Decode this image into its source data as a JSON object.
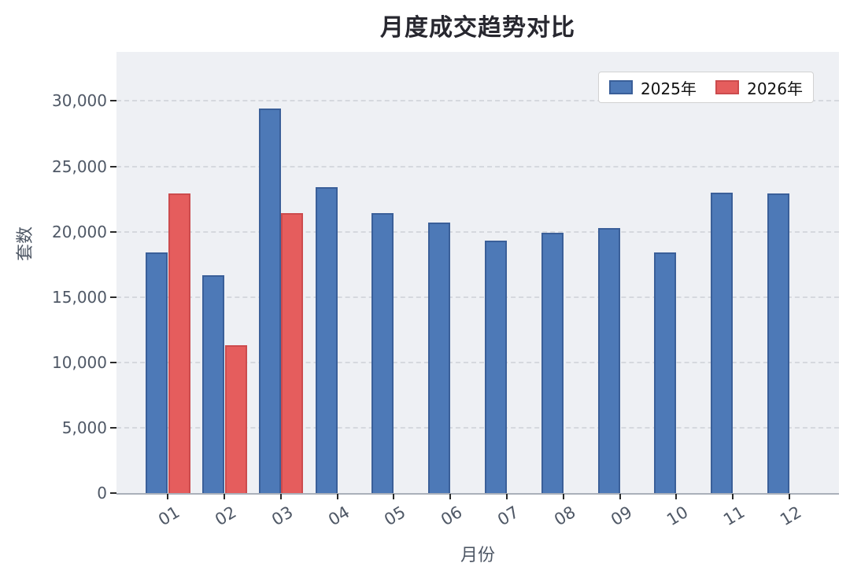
{
  "title": "月度成交趋势对比",
  "axes": {
    "x_title": "月份",
    "y_title": "套数"
  },
  "legend": {
    "items": [
      {
        "label": "2025年",
        "color": "#4d79b7",
        "border": "#3a5f99"
      },
      {
        "label": "2026年",
        "color": "#e55d5d",
        "border": "#cc4b4d"
      }
    ]
  },
  "chart_data": {
    "type": "bar",
    "title": "月度成交趋势对比",
    "xlabel": "月份",
    "ylabel": "套数",
    "categories": [
      "01",
      "02",
      "03",
      "04",
      "05",
      "06",
      "07",
      "08",
      "09",
      "10",
      "11",
      "12"
    ],
    "series": [
      {
        "name": "2025年",
        "color": "#4d79b7",
        "border_color": "#3a5f99",
        "values": [
          18400,
          16700,
          29400,
          23400,
          21400,
          20700,
          19300,
          19900,
          20300,
          18400,
          23000,
          22900
        ]
      },
      {
        "name": "2026年",
        "color": "#e55d5d",
        "border_color": "#cc4b4d",
        "values": [
          22900,
          11300,
          21400,
          null,
          null,
          null,
          null,
          null,
          null,
          null,
          null,
          null
        ]
      }
    ],
    "yticks": [
      0,
      5000,
      10000,
      15000,
      20000,
      25000,
      30000
    ],
    "ytick_labels": [
      "0",
      "5,000",
      "10,000",
      "15,000",
      "20,000",
      "25,000",
      "30,000"
    ],
    "ylim": [
      0,
      33760
    ],
    "grid": {
      "horizontal": true,
      "style": "dashed"
    },
    "legend_position": "top-right",
    "xtick_rotation_deg": 30,
    "plot_bg_color": "#eef0f4"
  }
}
